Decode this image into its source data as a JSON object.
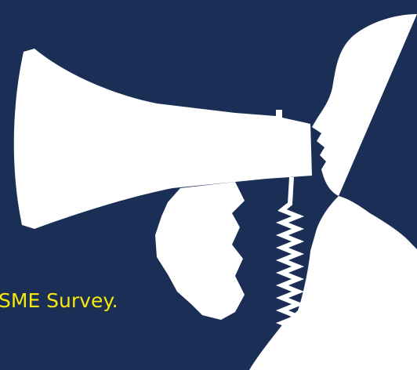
{
  "caption": "SME Survey."
}
